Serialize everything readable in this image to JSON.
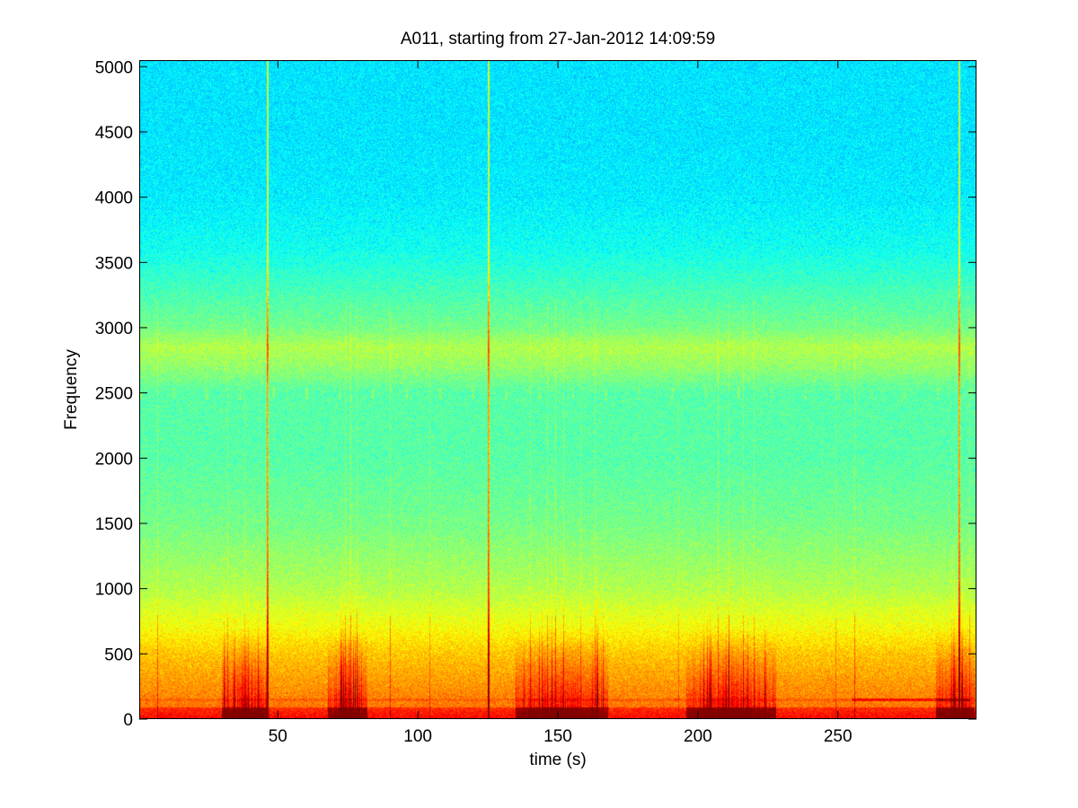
{
  "chart_data": {
    "type": "heatmap",
    "title": "A011, starting from 27-Jan-2012 14:09:59",
    "xlabel": "time (s)",
    "ylabel": "Frequency",
    "xlim": [
      0.5,
      299.5
    ],
    "ylim": [
      0,
      5050
    ],
    "x_ticks": [
      50,
      100,
      150,
      200,
      250
    ],
    "x_tick_labels": [
      "50",
      "100",
      "150",
      "200",
      "250"
    ],
    "y_ticks": [
      0,
      500,
      1000,
      1500,
      2000,
      2500,
      3000,
      3500,
      4000,
      4500,
      5000
    ],
    "y_tick_labels": [
      "0",
      "500",
      "1000",
      "1500",
      "2000",
      "2500",
      "3000",
      "3500",
      "4000",
      "4500",
      "5000"
    ],
    "colormap": "jet",
    "grid": false,
    "background_level_by_frequency": {
      "frequency": [
        0,
        100,
        250,
        500,
        700,
        1000,
        1500,
        2000,
        2500,
        2700,
        2850,
        3000,
        3300,
        3600,
        4000,
        4500,
        5050
      ],
      "level": [
        0.82,
        0.76,
        0.73,
        0.68,
        0.62,
        0.55,
        0.49,
        0.46,
        0.46,
        0.52,
        0.55,
        0.49,
        0.44,
        0.39,
        0.36,
        0.35,
        0.35
      ]
    },
    "vertical_transients_s": [
      7,
      32,
      38,
      46,
      74,
      76,
      78,
      90,
      104,
      125,
      140,
      146,
      149,
      152,
      158,
      163,
      193,
      207,
      211,
      216,
      220,
      249,
      256,
      293,
      297
    ],
    "broadband_clicks_s": [
      46,
      125,
      293
    ],
    "low_frequency_burst_intervals_s": [
      [
        30,
        46
      ],
      [
        68,
        82
      ],
      [
        135,
        168
      ],
      [
        196,
        228
      ],
      [
        285,
        299
      ]
    ],
    "tonal_band_frequency": 150,
    "tonal_band_interval_s": [
      255,
      297
    ],
    "faint_whistle_band_frequency": 2500
  }
}
